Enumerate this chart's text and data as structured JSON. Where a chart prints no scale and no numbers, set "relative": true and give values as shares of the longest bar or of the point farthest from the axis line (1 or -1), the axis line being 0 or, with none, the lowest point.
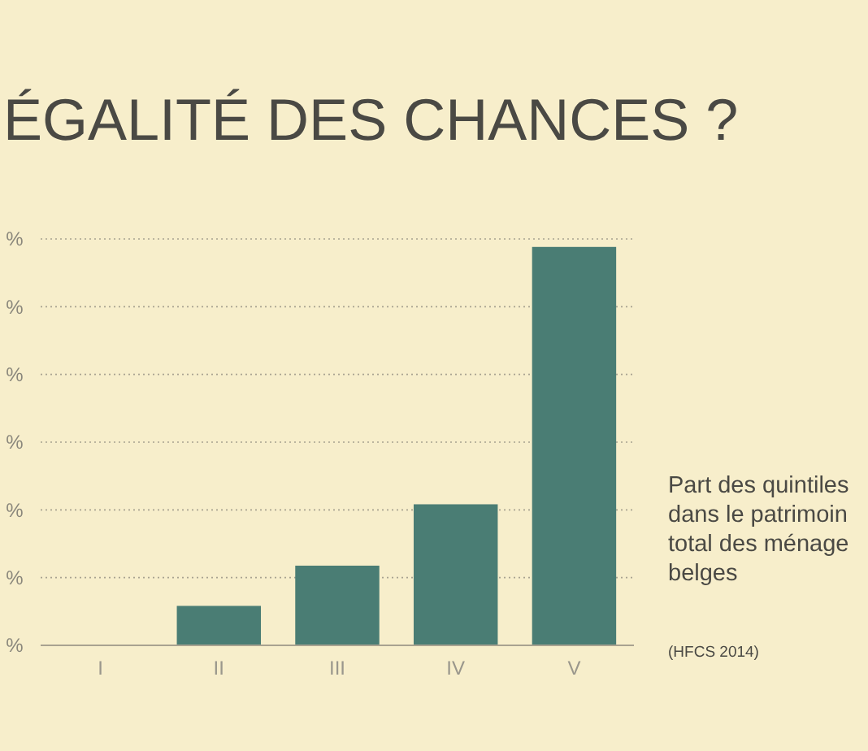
{
  "chart_data": {
    "type": "bar",
    "title": "ÉGALITÉ DES CHANCES ?",
    "categories": [
      "I",
      "II",
      "III",
      "IV",
      "V"
    ],
    "values": [
      0,
      0.099,
      0.2,
      0.354,
      1
    ],
    "color": "#4a7d74",
    "relative": true,
    "ref_lines": [
      {
        "axis": "y",
        "value": 0.17,
        "line_style": "dotted"
      },
      {
        "axis": "y",
        "value": 0.34,
        "line_style": "dotted"
      },
      {
        "axis": "y",
        "value": 0.51,
        "line_style": "dotted"
      },
      {
        "axis": "y",
        "value": 0.68,
        "line_style": "dotted"
      },
      {
        "axis": "y",
        "value": 0.85,
        "line_style": "dotted"
      },
      {
        "axis": "y",
        "value": 1.02,
        "line_style": "dotted"
      }
    ],
    "annotations": [
      "%",
      "%",
      "%",
      "%",
      "%",
      "%",
      "%",
      "Part des quintiles\ndans le patrimoin\ntotal des ménage\nbelges",
      "(HFCS 2014)"
    ]
  }
}
